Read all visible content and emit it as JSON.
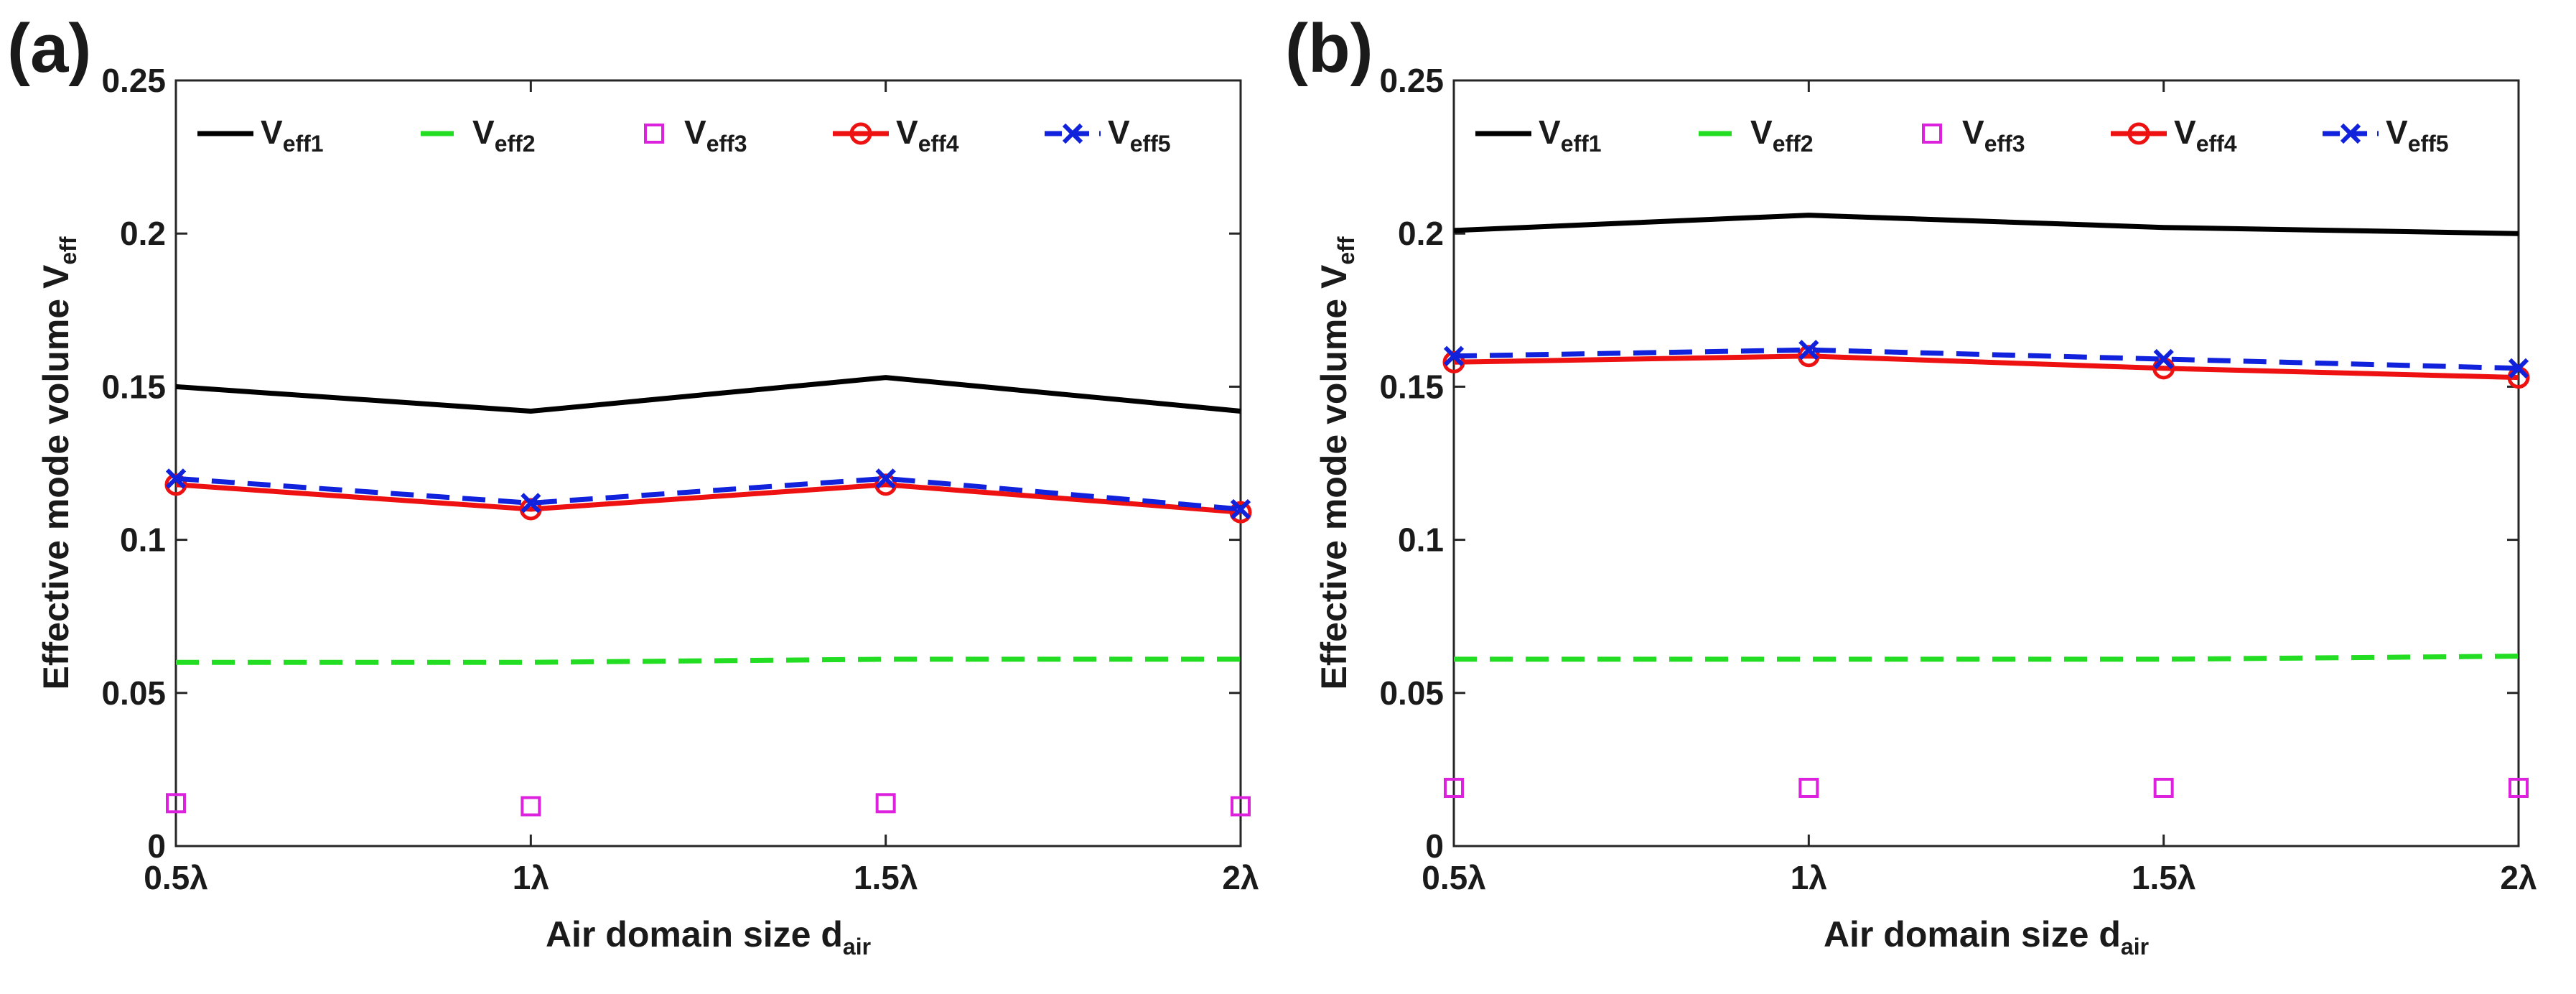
{
  "chart_data": [
    {
      "panel": "(a)",
      "type": "line",
      "xlabel": "Air domain size d",
      "xlabel_sub": "air",
      "ylabel": "Effective mode volume V",
      "ylabel_sub": "eff",
      "ylim": [
        0,
        0.25
      ],
      "yticks": [
        "0",
        "0.05",
        "0.1",
        "0.15",
        "0.2",
        "0.25"
      ],
      "x": [
        0.5,
        1,
        1.5,
        2
      ],
      "categories": [
        "0.5λ",
        "1λ",
        "1.5λ",
        "2λ"
      ],
      "series": [
        {
          "name": "V",
          "sub": "eff1",
          "color": "#000000",
          "style": "solid",
          "marker": "none",
          "values": [
            0.15,
            0.142,
            0.153,
            0.142
          ]
        },
        {
          "name": "V",
          "sub": "eff2",
          "color": "#22dd22",
          "style": "dashed",
          "marker": "none",
          "values": [
            0.06,
            0.06,
            0.061,
            0.061
          ]
        },
        {
          "name": "V",
          "sub": "eff3",
          "color": "#dd22dd",
          "style": "none",
          "marker": "square",
          "values": [
            0.014,
            0.013,
            0.014,
            0.013
          ]
        },
        {
          "name": "V",
          "sub": "eff4",
          "color": "#ee1111",
          "style": "solid",
          "marker": "circle",
          "values": [
            0.118,
            0.11,
            0.118,
            0.109
          ]
        },
        {
          "name": "V",
          "sub": "eff5",
          "color": "#1122dd",
          "style": "dashed",
          "marker": "x",
          "values": [
            0.12,
            0.112,
            0.12,
            0.11
          ]
        }
      ]
    },
    {
      "panel": "(b)",
      "type": "line",
      "xlabel": "Air domain size d",
      "xlabel_sub": "air",
      "ylabel": "Effective mode volume V",
      "ylabel_sub": "eff",
      "ylim": [
        0,
        0.25
      ],
      "yticks": [
        "0",
        "0.05",
        "0.1",
        "0.15",
        "0.2",
        "0.25"
      ],
      "x": [
        0.5,
        1,
        1.5,
        2
      ],
      "categories": [
        "0.5λ",
        "1λ",
        "1.5λ",
        "2λ"
      ],
      "series": [
        {
          "name": "V",
          "sub": "eff1",
          "color": "#000000",
          "style": "solid",
          "marker": "none",
          "values": [
            0.201,
            0.206,
            0.202,
            0.2
          ]
        },
        {
          "name": "V",
          "sub": "eff2",
          "color": "#22dd22",
          "style": "dashed",
          "marker": "none",
          "values": [
            0.061,
            0.061,
            0.061,
            0.062
          ]
        },
        {
          "name": "V",
          "sub": "eff3",
          "color": "#dd22dd",
          "style": "none",
          "marker": "square",
          "values": [
            0.019,
            0.019,
            0.019,
            0.019
          ]
        },
        {
          "name": "V",
          "sub": "eff4",
          "color": "#ee1111",
          "style": "solid",
          "marker": "circle",
          "values": [
            0.158,
            0.16,
            0.156,
            0.153
          ]
        },
        {
          "name": "V",
          "sub": "eff5",
          "color": "#1122dd",
          "style": "dashed",
          "marker": "x",
          "values": [
            0.16,
            0.162,
            0.159,
            0.156
          ]
        }
      ]
    }
  ]
}
